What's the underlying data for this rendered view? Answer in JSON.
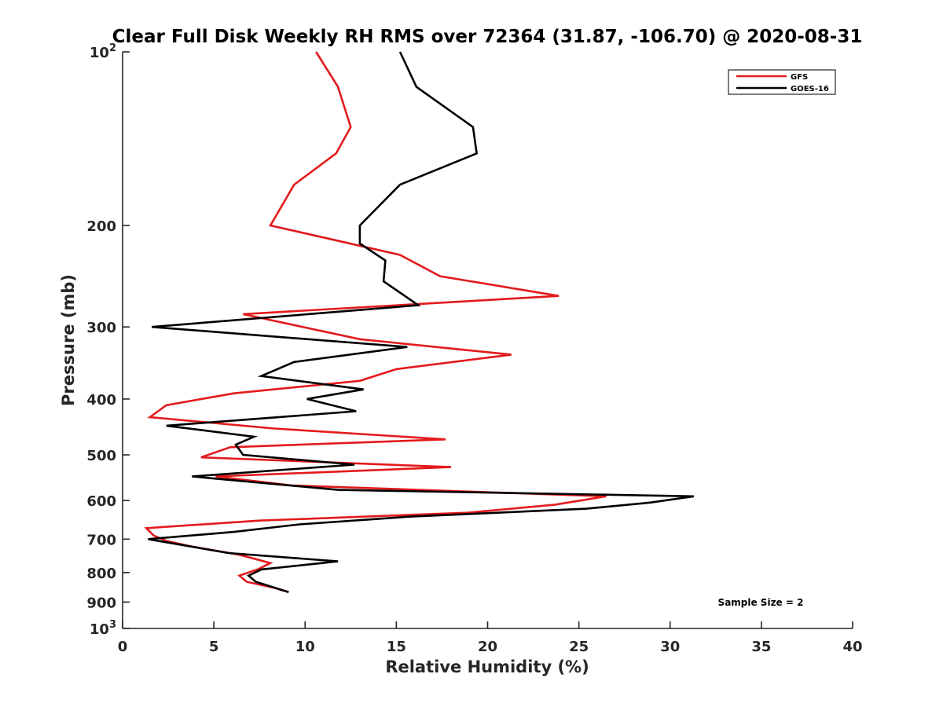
{
  "chart_data": {
    "type": "line",
    "title": "Clear Full Disk Weekly RH RMS over 72364 (31.87, -106.70) @ 2020-08-31",
    "xlabel": "Relative Humidity (%)",
    "ylabel": "Pressure (mb)",
    "xlim": [
      0,
      40
    ],
    "ylim": [
      100,
      1000
    ],
    "y_scale": "log",
    "y_reversed": true,
    "grid": false,
    "legend_position": "top-right",
    "x_ticks": [
      "0",
      "5",
      "10",
      "15",
      "20",
      "25",
      "30",
      "35",
      "40"
    ],
    "y_ticks": [
      {
        "value": 100,
        "base": "10",
        "exp": "2"
      },
      {
        "value": 200,
        "label": "200"
      },
      {
        "value": 300,
        "label": "300"
      },
      {
        "value": 400,
        "label": "400"
      },
      {
        "value": 500,
        "label": "500"
      },
      {
        "value": 600,
        "label": "600"
      },
      {
        "value": 700,
        "label": "700"
      },
      {
        "value": 800,
        "label": "800"
      },
      {
        "value": 900,
        "label": "900"
      },
      {
        "value": 1000,
        "base": "10",
        "exp": "3"
      }
    ],
    "annotation": "Sample Size = 2",
    "series": [
      {
        "name": "GFS",
        "color": "#e31a1c",
        "points": [
          [
            10.6,
            100
          ],
          [
            11.8,
            115
          ],
          [
            12.5,
            135
          ],
          [
            11.7,
            150
          ],
          [
            9.4,
            170
          ],
          [
            8.1,
            200
          ],
          [
            15.2,
            225
          ],
          [
            17.4,
            245
          ],
          [
            23.9,
            265
          ],
          [
            6.6,
            285
          ],
          [
            13.0,
            315
          ],
          [
            21.3,
            335
          ],
          [
            15.0,
            355
          ],
          [
            13.0,
            372
          ],
          [
            6.1,
            391
          ],
          [
            2.4,
            410
          ],
          [
            1.5,
            430
          ],
          [
            8.3,
            450
          ],
          [
            17.7,
            470
          ],
          [
            5.9,
            485
          ],
          [
            4.3,
            505
          ],
          [
            18.0,
            525
          ],
          [
            5.1,
            545
          ],
          [
            9.3,
            565
          ],
          [
            26.5,
            590
          ],
          [
            23.7,
            610
          ],
          [
            18.9,
            630
          ],
          [
            7.5,
            650
          ],
          [
            1.3,
            670
          ],
          [
            1.7,
            690
          ],
          [
            2.4,
            705
          ],
          [
            3.7,
            720
          ],
          [
            6.4,
            745
          ],
          [
            8.1,
            770
          ],
          [
            7.4,
            790
          ],
          [
            6.4,
            810
          ],
          [
            6.8,
            830
          ],
          [
            8.3,
            850
          ],
          [
            9.1,
            865
          ]
        ]
      },
      {
        "name": "GOES-16",
        "color": "#000000",
        "points": [
          [
            15.2,
            100
          ],
          [
            16.1,
            115
          ],
          [
            19.2,
            135
          ],
          [
            19.4,
            150
          ],
          [
            15.2,
            170
          ],
          [
            13.0,
            200
          ],
          [
            13.0,
            215
          ],
          [
            14.4,
            230
          ],
          [
            14.3,
            250
          ],
          [
            16.2,
            275
          ],
          [
            1.6,
            300
          ],
          [
            15.6,
            325
          ],
          [
            9.4,
            345
          ],
          [
            7.6,
            365
          ],
          [
            13.2,
            385
          ],
          [
            10.1,
            400
          ],
          [
            12.8,
            420
          ],
          [
            2.4,
            445
          ],
          [
            7.2,
            465
          ],
          [
            6.2,
            480
          ],
          [
            6.6,
            500
          ],
          [
            12.7,
            520
          ],
          [
            3.8,
            545
          ],
          [
            11.8,
            575
          ],
          [
            31.3,
            590
          ],
          [
            28.9,
            605
          ],
          [
            25.4,
            620
          ],
          [
            15.7,
            640
          ],
          [
            9.7,
            660
          ],
          [
            6.1,
            680
          ],
          [
            1.4,
            700
          ],
          [
            5.8,
            740
          ],
          [
            11.8,
            765
          ],
          [
            7.6,
            790
          ],
          [
            6.9,
            810
          ],
          [
            7.3,
            830
          ],
          [
            9.1,
            865
          ]
        ]
      }
    ]
  }
}
